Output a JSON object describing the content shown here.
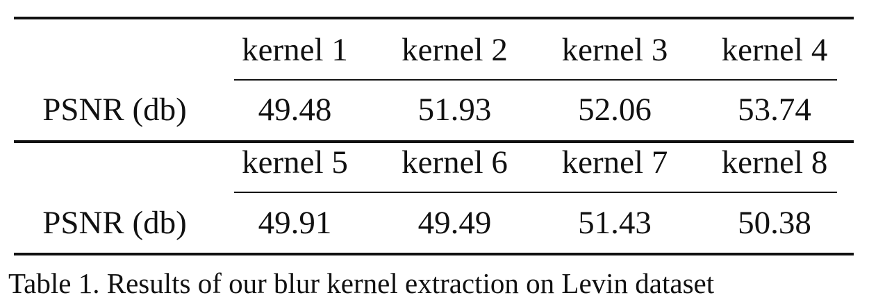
{
  "table": {
    "blocks": [
      {
        "headers": [
          "kernel 1",
          "kernel 2",
          "kernel 3",
          "kernel 4"
        ],
        "row_label": "PSNR (db)",
        "values": [
          "49.48",
          "51.93",
          "52.06",
          "53.74"
        ]
      },
      {
        "headers": [
          "kernel 5",
          "kernel 6",
          "kernel 7",
          "kernel 8"
        ],
        "row_label": "PSNR (db)",
        "values": [
          "49.91",
          "49.49",
          "51.43",
          "50.38"
        ]
      }
    ],
    "caption": "Table 1. Results of our blur kernel extraction on Levin dataset"
  },
  "chart_data": {
    "type": "table",
    "columns": [
      "kernel 1",
      "kernel 2",
      "kernel 3",
      "kernel 4",
      "kernel 5",
      "kernel 6",
      "kernel 7",
      "kernel 8"
    ],
    "rows": [
      {
        "label": "PSNR (db)",
        "values": [
          49.48,
          51.93,
          52.06,
          53.74,
          49.91,
          49.49,
          51.43,
          50.38
        ]
      }
    ],
    "title": "Table 1. Results of our blur kernel extraction on Levin dataset"
  }
}
